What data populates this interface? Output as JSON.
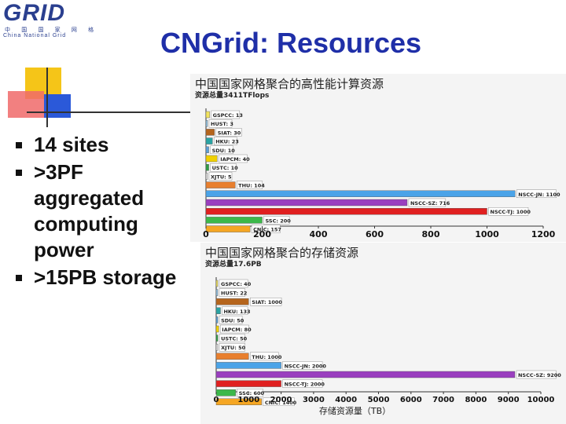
{
  "logo": {
    "text": "GRID",
    "cn": "中 国 国 家 网 格",
    "en": "China National Grid"
  },
  "slide": {
    "title": "CNGrid: Resources",
    "bullets": [
      "14 sites",
      ">3PF aggregated computing power",
      ">15PB storage"
    ]
  },
  "colors": {
    "title": "#1f2fa8",
    "accent_yellow": "#f5c518",
    "accent_red": "#e8332c",
    "accent_blue": "#2b59d9"
  },
  "chart_data": [
    {
      "type": "bar",
      "title": "中国国家网格聚合的高性能计算资源",
      "subtitle": "资源总量3411TFlops",
      "xlabel": "",
      "xlim": [
        0,
        1200
      ],
      "xticks": [
        0,
        200,
        400,
        600,
        800,
        1000,
        1200
      ],
      "series": [
        {
          "name": "GSPCC",
          "value": 13,
          "label": "GSPCC: 13",
          "color": "#f2e35c"
        },
        {
          "name": "HUST",
          "value": 3,
          "label": "HUST: 3",
          "color": "#8fc1e3"
        },
        {
          "name": "SIAT",
          "value": 30,
          "label": "SIAT: 30",
          "color": "#b5651d"
        },
        {
          "name": "HKU",
          "value": 23,
          "label": "HKU: 23",
          "color": "#2aa3a3"
        },
        {
          "name": "SDU",
          "value": 10,
          "label": "SDU: 10",
          "color": "#5aa0d8"
        },
        {
          "name": "IAPCM",
          "value": 40,
          "label": "IAPCM: 40",
          "color": "#f0d000"
        },
        {
          "name": "USTC",
          "value": 10,
          "label": "USTC: 10",
          "color": "#2f9e44"
        },
        {
          "name": "XJTU",
          "value": 5,
          "label": "XJTU: 5",
          "color": "#e0e0e0"
        },
        {
          "name": "THU",
          "value": 104,
          "label": "THU: 104",
          "color": "#e87f2e"
        },
        {
          "name": "NSCC-JN",
          "value": 1100,
          "label": "NSCC-JN: 1100",
          "color": "#4aa3e8"
        },
        {
          "name": "NSCC-SZ",
          "value": 716,
          "label": "NSCC-SZ: 716",
          "color": "#9a3fbf"
        },
        {
          "name": "NSCC-TJ",
          "value": 1000,
          "label": "NSCC-TJ: 1000",
          "color": "#e02020"
        },
        {
          "name": "SSC",
          "value": 200,
          "label": "SSC: 200",
          "color": "#3cb84a"
        },
        {
          "name": "CNIC",
          "value": 157,
          "label": "CNIC: 157",
          "color": "#f5a623"
        }
      ]
    },
    {
      "type": "bar",
      "title": "中国国家网格聚合的存储资源",
      "subtitle": "资源总量17.6PB",
      "xlabel": "存储资源量（TB）",
      "xlim": [
        0,
        10000
      ],
      "xticks": [
        0,
        1000,
        2000,
        3000,
        4000,
        5000,
        6000,
        7000,
        8000,
        9000,
        10000
      ],
      "series": [
        {
          "name": "GSPCC",
          "value": 40,
          "label": "GSPCC: 40",
          "color": "#f2e35c"
        },
        {
          "name": "HUST",
          "value": 22,
          "label": "HUST: 22",
          "color": "#8fc1e3"
        },
        {
          "name": "SIAT",
          "value": 1000,
          "label": "SIAT: 1000",
          "color": "#b5651d"
        },
        {
          "name": "HKU",
          "value": 133,
          "label": "HKU: 133",
          "color": "#2aa3a3"
        },
        {
          "name": "SDU",
          "value": 50,
          "label": "SDU: 50",
          "color": "#5aa0d8"
        },
        {
          "name": "IAPCM",
          "value": 80,
          "label": "IAPCM: 80",
          "color": "#f0d000"
        },
        {
          "name": "USTC",
          "value": 50,
          "label": "USTC: 50",
          "color": "#2f9e44"
        },
        {
          "name": "XJTU",
          "value": 50,
          "label": "XJTU: 50",
          "color": "#e0e0e0"
        },
        {
          "name": "THU",
          "value": 1000,
          "label": "THU: 1000",
          "color": "#e87f2e"
        },
        {
          "name": "NSCC-JN",
          "value": 2000,
          "label": "NSCC-JN: 2000",
          "color": "#4aa3e8"
        },
        {
          "name": "NSCC-SZ",
          "value": 9200,
          "label": "NSCC-SZ: 9200",
          "color": "#9a3fbf"
        },
        {
          "name": "NSCC-TJ",
          "value": 2000,
          "label": "NSCC-TJ: 2000",
          "color": "#e02020"
        },
        {
          "name": "SSC",
          "value": 600,
          "label": "SSC: 600",
          "color": "#3cb84a"
        },
        {
          "name": "CNIC",
          "value": 1400,
          "label": "CNIC: 1400",
          "color": "#f5a623"
        }
      ]
    }
  ]
}
